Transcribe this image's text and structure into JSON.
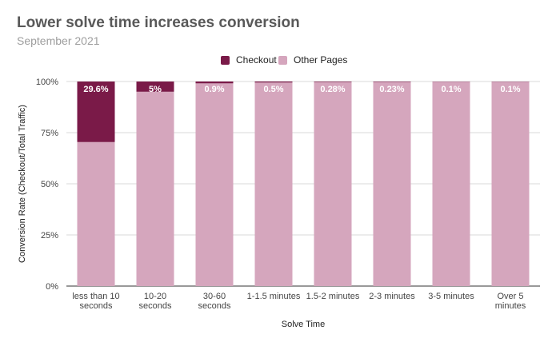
{
  "chart_data": {
    "type": "bar",
    "stacked": true,
    "title": "Lower solve time increases conversion",
    "subtitle": "September 2021",
    "xlabel": "Solve Time",
    "ylabel": "Conversion Rate (Checkout/Total Traffic)",
    "ylim": [
      0,
      100
    ],
    "y_ticks": [
      "0%",
      "25%",
      "50%",
      "75%",
      "100%"
    ],
    "grid": true,
    "legend_position": "top-center",
    "categories": [
      [
        "less than 10",
        "seconds"
      ],
      [
        "10-20",
        "seconds"
      ],
      [
        "30-60",
        "seconds"
      ],
      [
        "1-1.5 minutes"
      ],
      [
        "1.5-2 minutes"
      ],
      [
        "2-3 minutes"
      ],
      [
        "3-5 minutes"
      ],
      [
        "Over 5",
        "minutes"
      ]
    ],
    "series": [
      {
        "name": "Checkout",
        "color": "#7a1a48",
        "values": [
          29.6,
          5,
          0.9,
          0.5,
          0.28,
          0.23,
          0.1,
          0.1
        ],
        "labels": [
          "29.6%",
          "5%",
          "0.9%",
          "0.5%",
          "0.28%",
          "0.23%",
          "0.1%",
          "0.1%"
        ]
      },
      {
        "name": "Other Pages",
        "color": "#d5a6bd",
        "values": [
          70.4,
          95,
          99.1,
          99.5,
          99.72,
          99.77,
          99.9,
          99.9
        ]
      }
    ]
  }
}
